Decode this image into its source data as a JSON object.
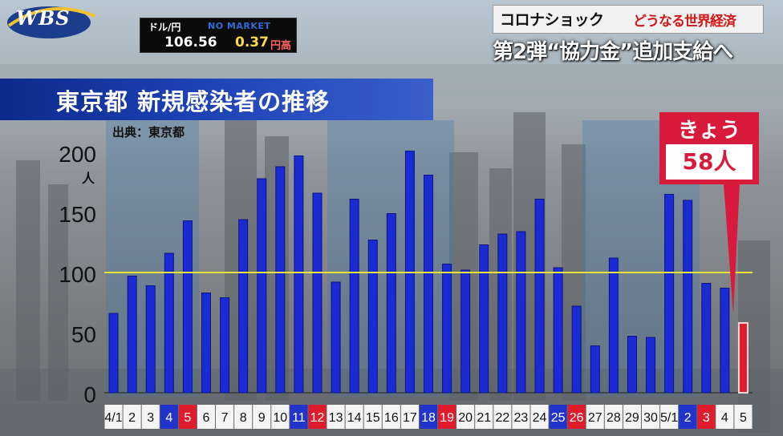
{
  "header": {
    "logo": "WBS",
    "fx_label": "ドル/円",
    "fx_ticker": "NO MARKET",
    "fx_rate": "106.56",
    "fx_change": "0.37",
    "fx_change_unit": "円高"
  },
  "banner": {
    "topic": "コロナショック",
    "subtopic": "どうなる世界経済",
    "headline": "第2弾“協力金”追加支給へ"
  },
  "chart_title": "東京都 新規感染者の推移",
  "source_label": "出典：東京都",
  "callout": {
    "label": "きょう",
    "value": "58人"
  },
  "chart_data": {
    "type": "bar",
    "title": "東京都 新規感染者の推移",
    "ylabel": "人",
    "ylim": [
      0,
      200
    ],
    "yticks": [
      "0",
      "50",
      "100",
      "150",
      "200"
    ],
    "reference_line": 100,
    "categories": [
      "4/1",
      "2",
      "3",
      "4",
      "5",
      "6",
      "7",
      "8",
      "9",
      "10",
      "11",
      "12",
      "13",
      "14",
      "15",
      "16",
      "17",
      "18",
      "19",
      "20",
      "21",
      "22",
      "23",
      "24",
      "25",
      "26",
      "27",
      "28",
      "29",
      "30",
      "5/1",
      "2",
      "3",
      "4",
      "5"
    ],
    "values": [
      66,
      97,
      89,
      116,
      143,
      83,
      79,
      144,
      178,
      188,
      197,
      166,
      92,
      161,
      127,
      149,
      201,
      181,
      107,
      102,
      123,
      132,
      134,
      161,
      104,
      72,
      39,
      112,
      47,
      46,
      165,
      160,
      91,
      87,
      58
    ],
    "label_style": [
      "plain",
      "plain",
      "plain",
      "blue",
      "red",
      "plain",
      "plain",
      "plain",
      "plain",
      "plain",
      "blue",
      "red",
      "plain",
      "plain",
      "plain",
      "plain",
      "plain",
      "blue",
      "red",
      "plain",
      "plain",
      "plain",
      "plain",
      "plain",
      "blue",
      "red",
      "plain",
      "plain",
      "plain",
      "plain",
      "plain",
      "blue",
      "red",
      "plain",
      "plain"
    ],
    "highlight_index": 34,
    "colors": {
      "bar": "#1a2bd6",
      "highlight": "#e01b2b",
      "line": "#e6e23a",
      "weekend_blue": "#2233cc",
      "weekend_red": "#e01b2b"
    }
  }
}
